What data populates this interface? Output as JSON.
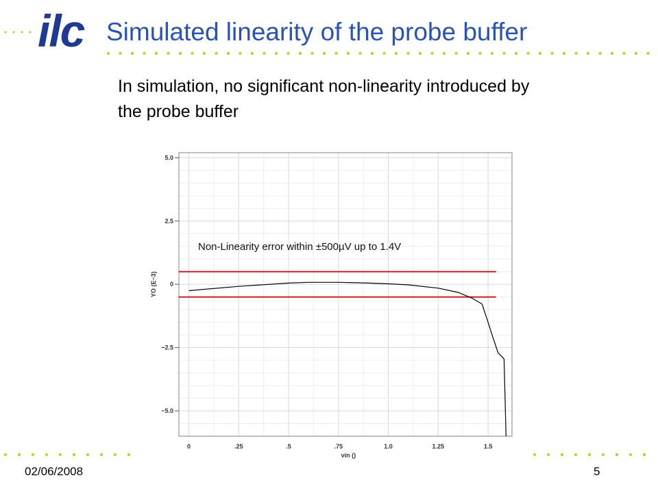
{
  "slide": {
    "logo_text": "ilc",
    "title": "Simulated linearity of the probe buffer",
    "subtitle": "In simulation, no significant non-linearity introduced by the probe buffer",
    "date": "02/06/2008",
    "page_number": "5"
  },
  "colors": {
    "title": "#2a53b5",
    "logo": "#1f3a93",
    "dots": "#b8d433",
    "bounds": "#cc1f1f",
    "curve": "#000000",
    "grid": "#d8d8d8"
  },
  "chart_data": {
    "type": "line",
    "xlabel": "vin ()",
    "ylabel": "YO (E−3)",
    "xlim": [
      -0.05,
      1.62
    ],
    "ylim": [
      -6.0,
      5.2
    ],
    "x_ticks": [
      0,
      0.25,
      0.5,
      0.75,
      1.0,
      1.25,
      1.5
    ],
    "x_tick_labels": [
      "0",
      ".25",
      ".5",
      ".75",
      "1.0",
      "1.25",
      "1.5"
    ],
    "y_ticks": [
      5.0,
      2.5,
      0,
      -2.5,
      -5.0
    ],
    "y_tick_labels": [
      "5.0",
      "2.5",
      "0",
      "−2.5",
      "−5.0"
    ],
    "grid": true,
    "series": [
      {
        "x": [
          0,
          0.25,
          0.5,
          0.6,
          0.75,
          0.9,
          1.0,
          1.1,
          1.25,
          1.35,
          1.42,
          1.47,
          1.5,
          1.52,
          1.55,
          1.58,
          1.59
        ],
        "values": [
          -0.25,
          -0.08,
          0.05,
          0.08,
          0.08,
          0.05,
          0.02,
          -0.02,
          -0.15,
          -0.32,
          -0.55,
          -0.78,
          -1.5,
          -2.0,
          -2.7,
          -2.95,
          -6.0
        ]
      }
    ],
    "bounds": [
      0.5,
      -0.5
    ],
    "bound_x_range": [
      -0.01,
      1.54
    ],
    "annotation": "Non-Linearity error within ±500µV up to 1.4V"
  }
}
